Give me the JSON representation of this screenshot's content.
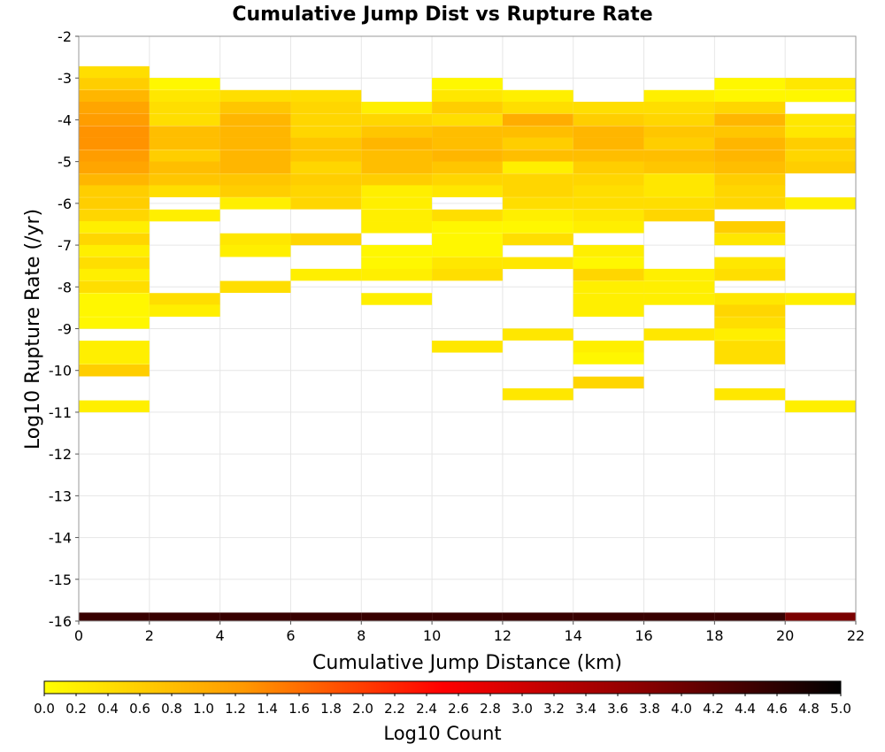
{
  "chart_data": {
    "type": "heatmap",
    "title": "Cumulative Jump Dist vs Rupture Rate",
    "xlabel": "Cumulative Jump Distance (km)",
    "ylabel": "Log10 Rupture Rate (/yr)",
    "xlim": [
      0,
      22
    ],
    "ylim": [
      -16,
      -2
    ],
    "x_ticks": [
      "0",
      "2",
      "4",
      "6",
      "8",
      "10",
      "12",
      "14",
      "16",
      "18",
      "20",
      "22"
    ],
    "y_ticks": [
      "-2",
      "-3",
      "-4",
      "-5",
      "-6",
      "-7",
      "-8",
      "-9",
      "-10",
      "-11",
      "-12",
      "-13",
      "-14",
      "-15",
      "-16"
    ],
    "x_bin_width": 2,
    "y_bin_height": 0.2857,
    "grid": true,
    "colorbar": {
      "label": "Log10 Count",
      "range": [
        0,
        5
      ],
      "ticks": [
        "0.0",
        "0.2",
        "0.4",
        "0.6",
        "0.8",
        "1.0",
        "1.2",
        "1.4",
        "1.6",
        "1.8",
        "2.0",
        "2.2",
        "2.4",
        "2.6",
        "2.8",
        "3.0",
        "3.2",
        "3.4",
        "3.6",
        "3.8",
        "4.0",
        "4.2",
        "4.4",
        "4.6",
        "4.8",
        "5.0"
      ],
      "colors": [
        "#ffff00",
        "#ff9900",
        "#ff0000",
        "#8b0000",
        "#000000"
      ]
    },
    "columns": [
      {
        "x": [
          0,
          2
        ],
        "cells": [
          [
            -2.86,
            0.4
          ],
          [
            -3.14,
            0.6
          ],
          [
            -3.43,
            0.9
          ],
          [
            -3.71,
            1.1
          ],
          [
            -4.0,
            1.2
          ],
          [
            -4.29,
            1.3
          ],
          [
            -4.57,
            1.3
          ],
          [
            -4.86,
            1.2
          ],
          [
            -5.14,
            1.1
          ],
          [
            -5.43,
            0.9
          ],
          [
            -5.71,
            0.6
          ],
          [
            -6.0,
            0.6
          ],
          [
            -6.29,
            0.5
          ],
          [
            -6.57,
            0.2
          ],
          [
            -6.86,
            0.5
          ],
          [
            -7.14,
            0.2
          ],
          [
            -7.43,
            0.4
          ],
          [
            -7.71,
            0.2
          ],
          [
            -8.0,
            0.4
          ],
          [
            -8.29,
            0.1
          ],
          [
            -8.57,
            0.1
          ],
          [
            -8.86,
            0.1
          ],
          [
            -9.43,
            0.2
          ],
          [
            -9.71,
            0.2
          ],
          [
            -10.0,
            0.6
          ],
          [
            -10.86,
            0.2
          ],
          [
            -15.94,
            4.5
          ]
        ]
      },
      {
        "x": [
          2,
          4
        ],
        "cells": [
          [
            -3.14,
            0.1
          ],
          [
            -3.43,
            0.3
          ],
          [
            -3.71,
            0.4
          ],
          [
            -4.0,
            0.4
          ],
          [
            -4.29,
            0.8
          ],
          [
            -4.57,
            0.8
          ],
          [
            -4.86,
            0.6
          ],
          [
            -5.14,
            0.8
          ],
          [
            -5.43,
            0.7
          ],
          [
            -5.71,
            0.4
          ],
          [
            -6.29,
            0.2
          ],
          [
            -8.29,
            0.4
          ],
          [
            -8.57,
            0.2
          ],
          [
            -15.94,
            4.5
          ]
        ]
      },
      {
        "x": [
          4,
          6
        ],
        "cells": [
          [
            -3.43,
            0.4
          ],
          [
            -3.71,
            0.7
          ],
          [
            -4.0,
            0.9
          ],
          [
            -4.29,
            0.9
          ],
          [
            -4.57,
            0.9
          ],
          [
            -4.86,
            0.9
          ],
          [
            -5.14,
            0.9
          ],
          [
            -5.43,
            0.7
          ],
          [
            -5.71,
            0.6
          ],
          [
            -6.0,
            0.2
          ],
          [
            -6.86,
            0.3
          ],
          [
            -7.14,
            0.2
          ],
          [
            -8.0,
            0.4
          ],
          [
            -15.94,
            4.5
          ]
        ]
      },
      {
        "x": [
          6,
          8
        ],
        "cells": [
          [
            -3.43,
            0.4
          ],
          [
            -3.71,
            0.5
          ],
          [
            -4.0,
            0.5
          ],
          [
            -4.29,
            0.5
          ],
          [
            -4.57,
            0.7
          ],
          [
            -4.86,
            0.7
          ],
          [
            -5.14,
            0.5
          ],
          [
            -5.43,
            0.6
          ],
          [
            -5.71,
            0.5
          ],
          [
            -6.0,
            0.5
          ],
          [
            -6.86,
            0.5
          ],
          [
            -7.71,
            0.2
          ],
          [
            -15.94,
            4.5
          ]
        ]
      },
      {
        "x": [
          8,
          10
        ],
        "cells": [
          [
            -3.71,
            0.2
          ],
          [
            -4.0,
            0.5
          ],
          [
            -4.29,
            0.7
          ],
          [
            -4.57,
            0.9
          ],
          [
            -4.86,
            0.8
          ],
          [
            -5.14,
            0.8
          ],
          [
            -5.43,
            0.6
          ],
          [
            -5.71,
            0.2
          ],
          [
            -6.0,
            0.2
          ],
          [
            -6.29,
            0.2
          ],
          [
            -6.57,
            0.2
          ],
          [
            -7.14,
            0.1
          ],
          [
            -7.43,
            0.1
          ],
          [
            -7.71,
            0.2
          ],
          [
            -8.29,
            0.2
          ],
          [
            -15.94,
            4.5
          ]
        ]
      },
      {
        "x": [
          10,
          12
        ],
        "cells": [
          [
            -3.14,
            0.1
          ],
          [
            -3.43,
            0.3
          ],
          [
            -3.71,
            0.6
          ],
          [
            -4.0,
            0.4
          ],
          [
            -4.29,
            0.8
          ],
          [
            -4.57,
            0.8
          ],
          [
            -4.86,
            0.9
          ],
          [
            -5.14,
            0.7
          ],
          [
            -5.43,
            0.5
          ],
          [
            -5.71,
            0.3
          ],
          [
            -6.29,
            0.4
          ],
          [
            -6.57,
            0.1
          ],
          [
            -6.86,
            0.1
          ],
          [
            -7.14,
            0.1
          ],
          [
            -7.43,
            0.3
          ],
          [
            -7.71,
            0.4
          ],
          [
            -9.43,
            0.3
          ],
          [
            -15.94,
            4.5
          ]
        ]
      },
      {
        "x": [
          12,
          14
        ],
        "cells": [
          [
            -3.43,
            0.2
          ],
          [
            -3.71,
            0.4
          ],
          [
            -4.0,
            1.0
          ],
          [
            -4.29,
            0.8
          ],
          [
            -4.57,
            0.6
          ],
          [
            -4.86,
            0.8
          ],
          [
            -5.14,
            0.2
          ],
          [
            -5.43,
            0.5
          ],
          [
            -5.71,
            0.5
          ],
          [
            -6.0,
            0.4
          ],
          [
            -6.29,
            0.2
          ],
          [
            -6.57,
            0.1
          ],
          [
            -6.86,
            0.4
          ],
          [
            -7.43,
            0.3
          ],
          [
            -9.14,
            0.3
          ],
          [
            -10.57,
            0.3
          ],
          [
            -15.94,
            4.5
          ]
        ]
      },
      {
        "x": [
          14,
          16
        ],
        "cells": [
          [
            -3.71,
            0.4
          ],
          [
            -4.0,
            0.6
          ],
          [
            -4.29,
            0.9
          ],
          [
            -4.57,
            0.9
          ],
          [
            -4.86,
            0.8
          ],
          [
            -5.14,
            0.6
          ],
          [
            -5.43,
            0.5
          ],
          [
            -5.71,
            0.4
          ],
          [
            -6.0,
            0.4
          ],
          [
            -6.29,
            0.3
          ],
          [
            -6.57,
            0.2
          ],
          [
            -7.14,
            0.2
          ],
          [
            -7.43,
            0.1
          ],
          [
            -7.71,
            0.5
          ],
          [
            -8.0,
            0.2
          ],
          [
            -8.29,
            0.2
          ],
          [
            -8.57,
            0.2
          ],
          [
            -9.43,
            0.2
          ],
          [
            -9.71,
            0.1
          ],
          [
            -10.29,
            0.5
          ],
          [
            -15.94,
            4.5
          ]
        ]
      },
      {
        "x": [
          16,
          18
        ],
        "cells": [
          [
            -3.43,
            0.2
          ],
          [
            -3.71,
            0.4
          ],
          [
            -4.0,
            0.5
          ],
          [
            -4.29,
            0.7
          ],
          [
            -4.57,
            0.6
          ],
          [
            -4.86,
            0.8
          ],
          [
            -5.14,
            0.7
          ],
          [
            -5.43,
            0.3
          ],
          [
            -5.71,
            0.3
          ],
          [
            -6.0,
            0.4
          ],
          [
            -6.29,
            0.5
          ],
          [
            -7.71,
            0.2
          ],
          [
            -8.0,
            0.2
          ],
          [
            -8.29,
            0.2
          ],
          [
            -9.14,
            0.3
          ],
          [
            -15.94,
            4.5
          ]
        ]
      },
      {
        "x": [
          18,
          20
        ],
        "cells": [
          [
            -3.14,
            0.1
          ],
          [
            -3.43,
            0.1
          ],
          [
            -3.71,
            0.5
          ],
          [
            -4.0,
            0.9
          ],
          [
            -4.29,
            0.7
          ],
          [
            -4.57,
            0.9
          ],
          [
            -4.86,
            0.9
          ],
          [
            -5.14,
            0.8
          ],
          [
            -5.43,
            0.6
          ],
          [
            -5.71,
            0.5
          ],
          [
            -6.0,
            0.5
          ],
          [
            -6.57,
            0.6
          ],
          [
            -6.86,
            0.3
          ],
          [
            -7.43,
            0.3
          ],
          [
            -7.71,
            0.4
          ],
          [
            -8.29,
            0.3
          ],
          [
            -8.57,
            0.5
          ],
          [
            -8.86,
            0.4
          ],
          [
            -9.14,
            0.2
          ],
          [
            -9.43,
            0.4
          ],
          [
            -9.71,
            0.4
          ],
          [
            -10.57,
            0.3
          ],
          [
            -15.94,
            4.5
          ]
        ]
      },
      {
        "x": [
          20,
          22
        ],
        "cells": [
          [
            -3.14,
            0.3
          ],
          [
            -3.43,
            0.1
          ],
          [
            -4.0,
            0.3
          ],
          [
            -4.29,
            0.3
          ],
          [
            -4.57,
            0.6
          ],
          [
            -4.86,
            0.5
          ],
          [
            -5.14,
            0.6
          ],
          [
            -6.0,
            0.2
          ],
          [
            -8.29,
            0.2
          ],
          [
            -10.86,
            0.2
          ],
          [
            -15.94,
            3.9
          ]
        ]
      }
    ]
  }
}
